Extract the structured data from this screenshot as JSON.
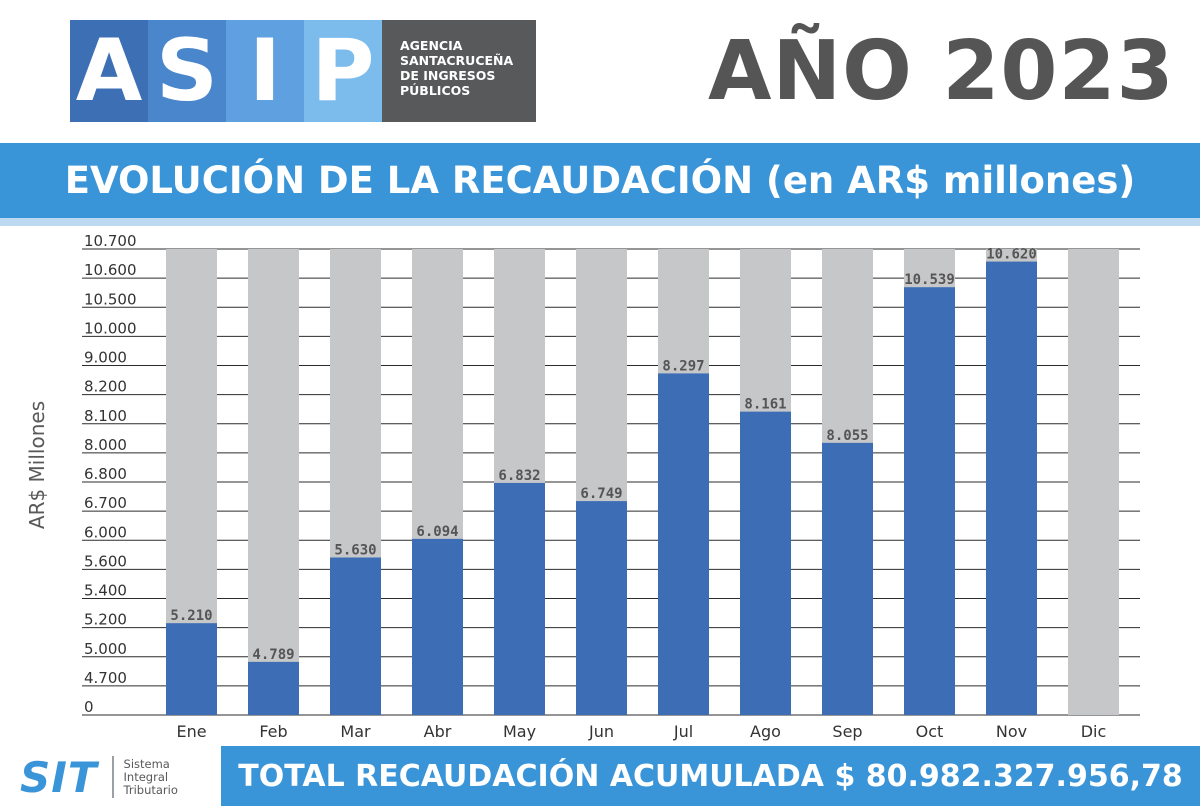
{
  "logo": {
    "letters": [
      "A",
      "S",
      "I",
      "P"
    ],
    "letter_colors": [
      "#3d6fb5",
      "#4a86cc",
      "#5fa0e0",
      "#7bbcec"
    ],
    "agency_lines": [
      "AGENCIA",
      "SANTACRUCEÑA",
      "DE INGRESOS",
      "PÚBLICOS"
    ]
  },
  "year_title": "AÑO 2023",
  "banner_title": "EVOLUCIÓN DE LA RECAUDACIÓN (en AR$ millones)",
  "colors": {
    "accent": "#3a94d8",
    "bar": "#3d6db5",
    "bar_background": "#c6c7c9",
    "gray_text": "#58595b"
  },
  "chart_data": {
    "type": "bar",
    "title": "EVOLUCIÓN DE LA RECAUDACIÓN (en AR$ millones)",
    "ylabel": "AR$ Millones",
    "xlabel": "",
    "y_tick_labels": [
      "10.700",
      "10.600",
      "10.500",
      "10.000",
      "9.000",
      "8.200",
      "8.100",
      "8.000",
      "6.800",
      "6.700",
      "6.000",
      "5.600",
      "5.400",
      "5.200",
      "5.000",
      "4.700",
      "0"
    ],
    "y_scale": "non-linear (piecewise, labels not evenly spaced)",
    "grid": true,
    "legend": "none",
    "categories": [
      "Ene",
      "Feb",
      "Mar",
      "Abr",
      "May",
      "Jun",
      "Jul",
      "Ago",
      "Sep",
      "Oct",
      "Nov",
      "Dic"
    ],
    "values": [
      5210,
      4789,
      5630,
      6094,
      6832,
      6749,
      8297,
      8161,
      8055,
      10539,
      10620,
      null
    ],
    "value_labels": [
      "5.210",
      "4.789",
      "5.630",
      "6.094",
      "6.832",
      "6.749",
      "8.297",
      "8.161",
      "8.055",
      "10.539",
      "10.620",
      ""
    ],
    "bar_fill_fraction": [
      0.197,
      0.114,
      0.338,
      0.378,
      0.498,
      0.459,
      0.733,
      0.651,
      0.584,
      0.918,
      0.973,
      0
    ]
  },
  "sit": {
    "mark": "SIT",
    "lines": [
      "Sistema",
      "Integral",
      "Tributario"
    ]
  },
  "total_label": "TOTAL RECAUDACIÓN ACUMULADA $ 80.982.327.956,78"
}
